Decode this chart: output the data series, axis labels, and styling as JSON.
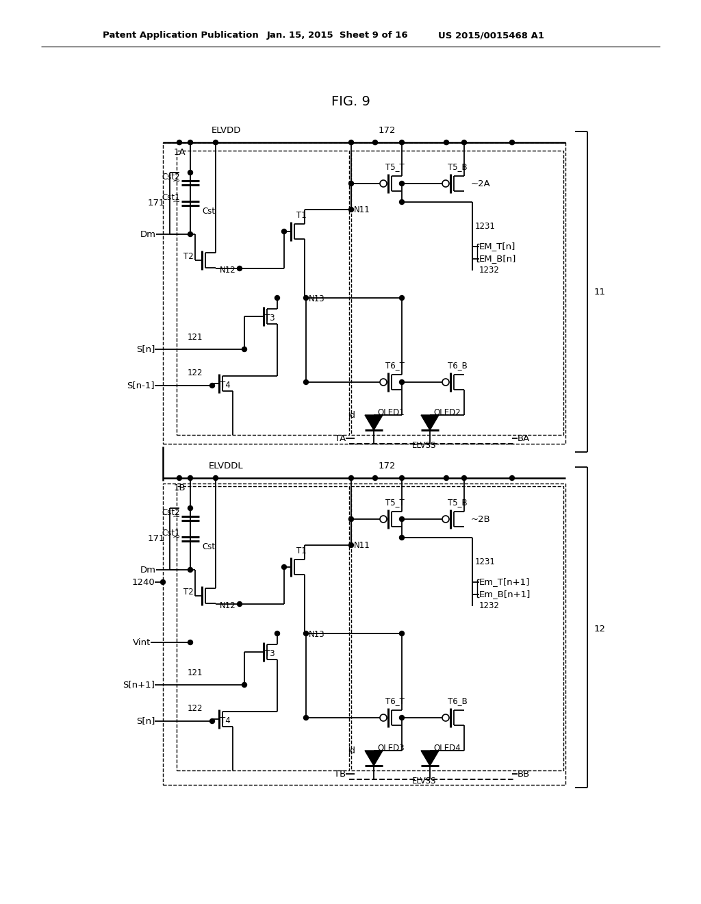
{
  "title": "FIG. 9",
  "header_left": "Patent Application Publication",
  "header_center": "Jan. 15, 2015  Sheet 9 of 16",
  "header_right": "US 2015/0015468 A1",
  "bg_color": "#ffffff",
  "fig_size": [
    10.24,
    13.2
  ],
  "dpi": 100
}
